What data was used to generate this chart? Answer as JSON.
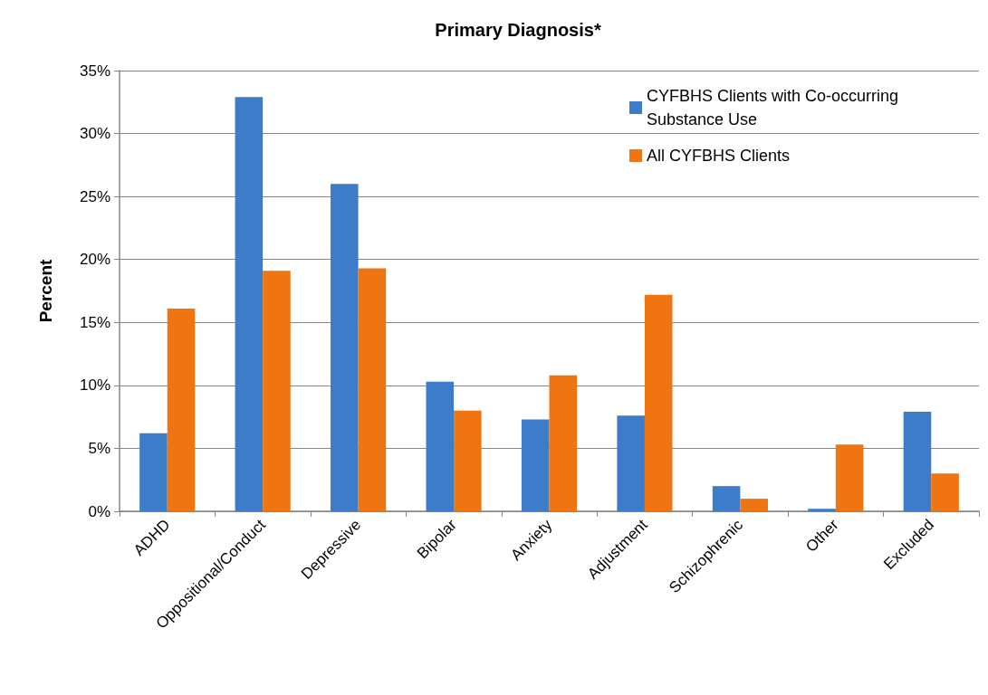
{
  "chart_data": {
    "type": "bar",
    "title": "Primary Diagnosis*",
    "ylabel": "Percent",
    "categories": [
      "ADHD",
      "Oppositional/Conduct",
      "Depressive",
      "Bipolar",
      "Anxiety",
      "Adjustment",
      "Schizophrenic",
      "Other",
      "Excluded"
    ],
    "series": [
      {
        "name": "CYFBHS Clients with Co-occurring Substance Use",
        "color": "#3d7cc9",
        "values": [
          6.2,
          32.9,
          26.0,
          10.3,
          7.3,
          7.6,
          2.0,
          0.2,
          7.9
        ]
      },
      {
        "name": "All CYFBHS Clients",
        "color": "#ef7512",
        "values": [
          16.1,
          19.1,
          19.3,
          8.0,
          10.8,
          17.2,
          1.0,
          5.3,
          3.0
        ]
      }
    ],
    "ylim": [
      0,
      35
    ],
    "yticks": [
      {
        "value": 0,
        "label": "0%"
      },
      {
        "value": 5,
        "label": "5%"
      },
      {
        "value": 10,
        "label": "10%"
      },
      {
        "value": 15,
        "label": "15%"
      },
      {
        "value": 20,
        "label": "20%"
      },
      {
        "value": 25,
        "label": "25%"
      },
      {
        "value": 30,
        "label": "30%"
      },
      {
        "value": 35,
        "label": "35%"
      }
    ],
    "grid": "y",
    "legend": "top right"
  }
}
